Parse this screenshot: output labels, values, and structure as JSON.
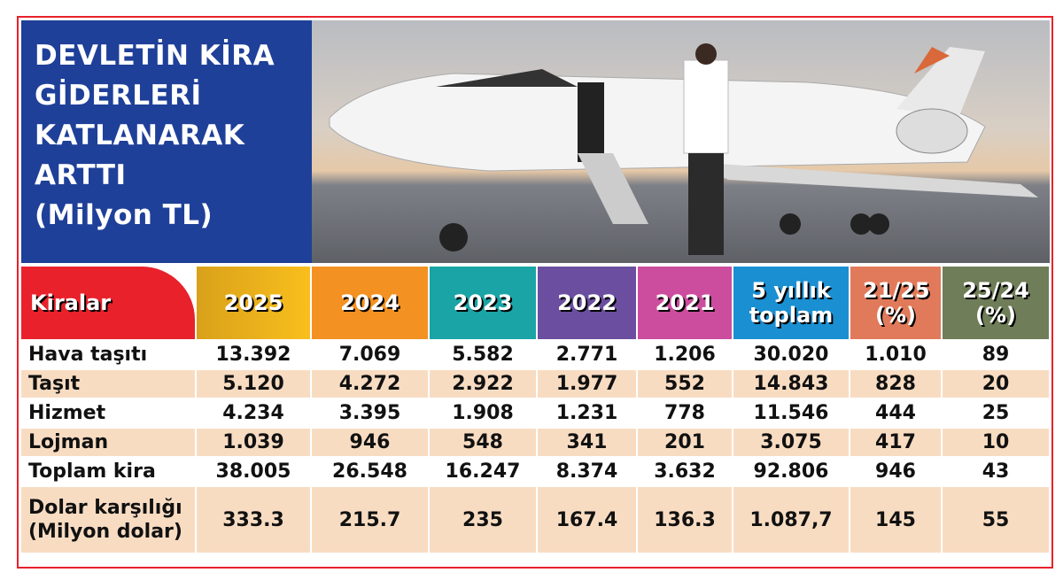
{
  "title": {
    "lines": [
      "DEVLETİN KİRA",
      "GİDERLERİ",
      "KATLANARAK",
      "ARTTI",
      "(Milyon TL)"
    ]
  },
  "colors": {
    "frame": "#e8212b",
    "title_bg": "#1f4099",
    "row_alt": "#f8dcc2"
  },
  "table": {
    "headers": [
      {
        "label": "Kiralar",
        "color": "#e8212b"
      },
      {
        "label": "2025",
        "color": "#f2b51e"
      },
      {
        "label": "2024",
        "color": "#f39222"
      },
      {
        "label": "2023",
        "color": "#1aa4a6"
      },
      {
        "label": "2022",
        "color": "#6b4ea0"
      },
      {
        "label": "2021",
        "color": "#cc4d9e"
      },
      {
        "label": "5 yıllık toplam",
        "color": "#1a8fd2"
      },
      {
        "label": "21/25 (%)",
        "color": "#e17a5a"
      },
      {
        "label": "25/24 (%)",
        "color": "#6f7d58"
      }
    ],
    "rows": [
      {
        "label": "Hava taşıtı",
        "values": [
          "13.392",
          "7.069",
          "5.582",
          "2.771",
          "1.206",
          "30.020",
          "1.010",
          "89"
        ]
      },
      {
        "label": "Taşıt",
        "values": [
          "5.120",
          "4.272",
          "2.922",
          "1.977",
          "552",
          "14.843",
          "828",
          "20"
        ]
      },
      {
        "label": "Hizmet",
        "values": [
          "4.234",
          "3.395",
          "1.908",
          "1.231",
          "778",
          "11.546",
          "444",
          "25"
        ]
      },
      {
        "label": "Lojman",
        "values": [
          "1.039",
          "946",
          "548",
          "341",
          "201",
          "3.075",
          "417",
          "10"
        ]
      },
      {
        "label": "Toplam kira",
        "values": [
          "38.005",
          "26.548",
          "16.247",
          "8.374",
          "3.632",
          "92.806",
          "946",
          "43"
        ]
      },
      {
        "label": "Dolar karşılığı (Milyon dolar)",
        "values": [
          "333.3",
          "215.7",
          "235",
          "167.4",
          "136.3",
          "1.087,7",
          "145",
          "55"
        ]
      }
    ]
  }
}
